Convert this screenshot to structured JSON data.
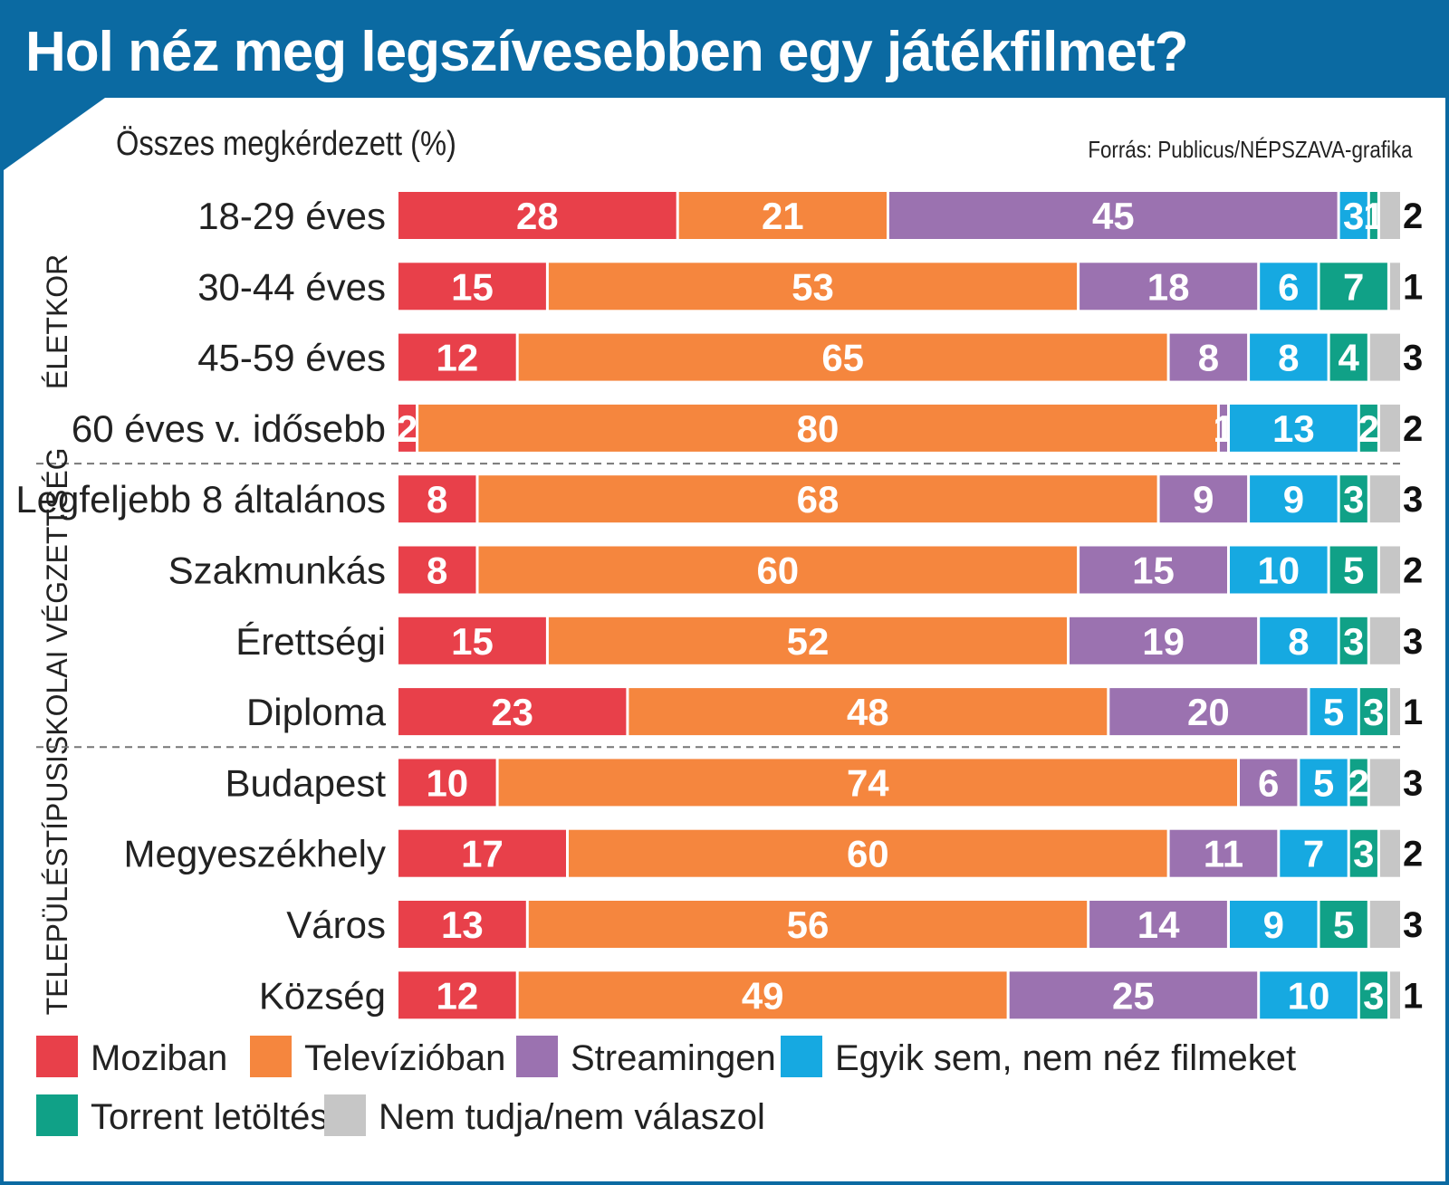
{
  "title": "Hol néz meg legszívesebben egy játékfilmet?",
  "subtitle": "Összes megkérdezett (%)",
  "source": "Forrás: Publicus/NÉPSZAVA-grafika",
  "chart_data": {
    "type": "bar",
    "orientation": "horizontal",
    "stacked": true,
    "xlim": [
      0,
      100
    ],
    "groups": [
      {
        "name": "ÉLETKOR",
        "categories": [
          "18-29 éves",
          "30-44 éves",
          "45-59 éves",
          "60 éves v. idősebb"
        ]
      },
      {
        "name": "ISKOLAI VÉGZETTSÉG",
        "categories": [
          "Legfeljebb 8 általános",
          "Szakmunkás",
          "Érettségi",
          "Diploma"
        ]
      },
      {
        "name": "TELEPÜLÉSTÍPUS",
        "categories": [
          "Budapest",
          "Megyeszékhely",
          "Város",
          "Község"
        ]
      }
    ],
    "categories": [
      "18-29 éves",
      "30-44 éves",
      "45-59 éves",
      "60 éves v. idősebb",
      "Legfeljebb 8 általános",
      "Szakmunkás",
      "Érettségi",
      "Diploma",
      "Budapest",
      "Megyeszékhely",
      "Város",
      "Község"
    ],
    "series": [
      {
        "name": "Moziban",
        "color": "#e8404a",
        "values": [
          28,
          15,
          12,
          2,
          8,
          8,
          15,
          23,
          10,
          17,
          13,
          12
        ]
      },
      {
        "name": "Televízióban",
        "color": "#f5863e",
        "values": [
          21,
          53,
          65,
          80,
          68,
          60,
          52,
          48,
          74,
          60,
          56,
          49
        ]
      },
      {
        "name": "Streamingen",
        "color": "#9b72b0",
        "values": [
          45,
          18,
          8,
          1,
          9,
          15,
          19,
          20,
          6,
          11,
          14,
          25
        ]
      },
      {
        "name": "Egyik sem, nem néz filmeket",
        "color": "#16a9e1",
        "values": [
          3,
          6,
          8,
          13,
          9,
          10,
          8,
          5,
          5,
          7,
          9,
          10
        ]
      },
      {
        "name": "Torrent letöltés",
        "color": "#10a187",
        "values": [
          1,
          7,
          4,
          2,
          3,
          5,
          3,
          3,
          2,
          3,
          5,
          3
        ]
      },
      {
        "name": "Nem tudja/nem válaszol",
        "color": "#c6c6c6",
        "values": [
          2,
          1,
          3,
          2,
          3,
          2,
          3,
          1,
          3,
          2,
          3,
          1
        ]
      }
    ],
    "legend_position": "bottom",
    "grid": false
  }
}
